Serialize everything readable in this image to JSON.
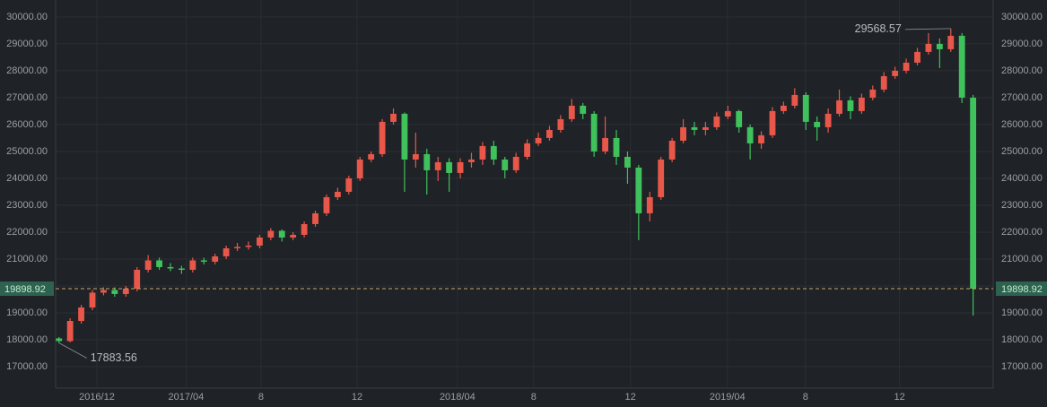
{
  "chart_data": {
    "type": "candlestick",
    "up_color": "#e8574a",
    "down_color": "#3fc25c",
    "grid": true,
    "ylim": [
      16200,
      30630
    ],
    "yticks": [
      {
        "value": 17000,
        "label": "17000.00"
      },
      {
        "value": 18000,
        "label": "18000.00"
      },
      {
        "value": 19000,
        "label": "19000.00"
      },
      {
        "value": 20000,
        "label": "20000.00"
      },
      {
        "value": 21000,
        "label": "21000.00"
      },
      {
        "value": 22000,
        "label": "22000.00"
      },
      {
        "value": 23000,
        "label": "23000.00"
      },
      {
        "value": 24000,
        "label": "24000.00"
      },
      {
        "value": 25000,
        "label": "25000.00"
      },
      {
        "value": 26000,
        "label": "26000.00"
      },
      {
        "value": 27000,
        "label": "27000.00"
      },
      {
        "value": 28000,
        "label": "28000.00"
      },
      {
        "value": 29000,
        "label": "29000.00"
      },
      {
        "value": 30000,
        "label": "30000.00"
      }
    ],
    "xlim": [
      -0.85,
      41.2
    ],
    "xticks": [
      {
        "value": 1,
        "label": "2016/12"
      },
      {
        "value": 5,
        "label": "2017/04"
      },
      {
        "value": 8.36,
        "label": "8"
      },
      {
        "value": 12.67,
        "label": "12"
      },
      {
        "value": 17.17,
        "label": "2018/04"
      },
      {
        "value": 20.59,
        "label": "8"
      },
      {
        "value": 24.93,
        "label": "12"
      },
      {
        "value": 29.28,
        "label": "2019/04"
      },
      {
        "value": 32.78,
        "label": "8"
      },
      {
        "value": 37,
        "label": "12"
      }
    ],
    "x": [
      -0.7,
      -0.2,
      0.3,
      0.8,
      1.3,
      1.8,
      2.3,
      2.8,
      3.3,
      3.8,
      4.3,
      4.8,
      5.3,
      5.8,
      6.3,
      6.8,
      7.3,
      7.8,
      8.3,
      8.8,
      9.3,
      9.8,
      10.3,
      10.8,
      11.3,
      11.8,
      12.3,
      12.8,
      13.3,
      13.8,
      14.3,
      14.8,
      15.3,
      15.8,
      16.3,
      16.8,
      17.3,
      17.8,
      18.3,
      18.8,
      19.3,
      19.8,
      20.3,
      20.8,
      21.3,
      21.8,
      22.3,
      22.8,
      23.3,
      23.8,
      24.3,
      24.8,
      25.3,
      25.8,
      26.3,
      26.8,
      27.3,
      27.8,
      28.3,
      28.8,
      29.3,
      29.8,
      30.3,
      30.8,
      31.3,
      31.8,
      32.3,
      32.8,
      33.3,
      33.8,
      34.3,
      34.8,
      35.3,
      35.8,
      36.3,
      36.8,
      37.3,
      37.8,
      38.3,
      38.8,
      39.3,
      39.8,
      40.3
    ],
    "open": [
      18050,
      17950,
      18700,
      19200,
      19750,
      19850,
      19700,
      19900,
      20600,
      20950,
      20700,
      20650,
      20600,
      20950,
      20900,
      21100,
      21400,
      21450,
      21500,
      21800,
      22050,
      21800,
      21900,
      22300,
      22700,
      23300,
      23500,
      24000,
      24700,
      24900,
      26100,
      26400,
      24700,
      24900,
      24300,
      24600,
      24200,
      24600,
      24700,
      25200,
      24700,
      24300,
      24800,
      25300,
      25500,
      25800,
      26200,
      26700,
      26400,
      25000,
      25500,
      24800,
      24400,
      22700,
      23300,
      24700,
      25400,
      25900,
      25800,
      25900,
      26300,
      26500,
      25900,
      25300,
      25600,
      26500,
      26700,
      27100,
      26100,
      25900,
      26400,
      26900,
      26500,
      27000,
      27300,
      27800,
      28000,
      28300,
      28700,
      29000,
      28800,
      29300,
      27000
    ],
    "close": [
      17950,
      18700,
      19200,
      19750,
      19850,
      19700,
      19900,
      20600,
      20950,
      20700,
      20650,
      20600,
      20950,
      20900,
      21100,
      21400,
      21450,
      21500,
      21800,
      22050,
      21800,
      21900,
      22300,
      22700,
      23300,
      23500,
      24000,
      24700,
      24900,
      26100,
      26400,
      24700,
      24900,
      24300,
      24600,
      24200,
      24600,
      24700,
      25200,
      24700,
      24300,
      24800,
      25300,
      25500,
      25800,
      26200,
      26700,
      26400,
      25000,
      25500,
      24800,
      24400,
      22700,
      23300,
      24700,
      25400,
      25900,
      25800,
      25900,
      26300,
      26500,
      25900,
      25300,
      25600,
      26500,
      26700,
      27100,
      26100,
      25900,
      26400,
      26900,
      26500,
      27000,
      27300,
      27800,
      28000,
      28300,
      28700,
      29000,
      28800,
      29300,
      27000,
      19898.92
    ],
    "high": [
      18100,
      18800,
      19300,
      19850,
      19950,
      19950,
      20000,
      20700,
      21150,
      21050,
      20850,
      20750,
      21050,
      21050,
      21200,
      21500,
      21600,
      21650,
      21900,
      22150,
      22100,
      22000,
      22400,
      22800,
      23400,
      23650,
      24100,
      24800,
      25000,
      26200,
      26600,
      26450,
      25700,
      25100,
      24800,
      24750,
      24750,
      24950,
      25350,
      25400,
      24800,
      24950,
      25450,
      25700,
      25950,
      26350,
      26950,
      26800,
      26500,
      26300,
      25800,
      25000,
      24500,
      23500,
      24800,
      25500,
      26200,
      26100,
      26100,
      26450,
      26700,
      26550,
      26000,
      25750,
      26650,
      26850,
      27350,
      27200,
      26300,
      26600,
      27300,
      27050,
      27150,
      27450,
      27950,
      28150,
      28450,
      28850,
      29400,
      29200,
      29568.57,
      29400,
      27100
    ],
    "low": [
      17883.56,
      17900,
      18600,
      19100,
      19650,
      19600,
      19600,
      19800,
      20500,
      20600,
      20550,
      20450,
      20500,
      20800,
      20800,
      21000,
      21300,
      21350,
      21400,
      21700,
      21650,
      21700,
      21800,
      22200,
      22600,
      23200,
      23400,
      23900,
      24600,
      24800,
      26000,
      23500,
      24400,
      23400,
      23900,
      23500,
      24000,
      24400,
      24500,
      24500,
      24000,
      24200,
      24700,
      25200,
      25400,
      25700,
      26100,
      26200,
      24800,
      24900,
      24500,
      23800,
      21700,
      22400,
      23200,
      24600,
      25300,
      25600,
      25600,
      25800,
      26200,
      25700,
      24700,
      25100,
      25500,
      26400,
      26600,
      25800,
      25400,
      25700,
      26300,
      26200,
      26400,
      26900,
      27200,
      27700,
      27900,
      28200,
      28600,
      28100,
      28700,
      26800,
      18900
    ],
    "annotations": [
      {
        "value": 29568.57,
        "label": "29568.57"
      },
      {
        "value": 17883.56,
        "label": "17883.56"
      }
    ],
    "last_price": {
      "value": 19898.92,
      "label": "19898.92"
    }
  }
}
